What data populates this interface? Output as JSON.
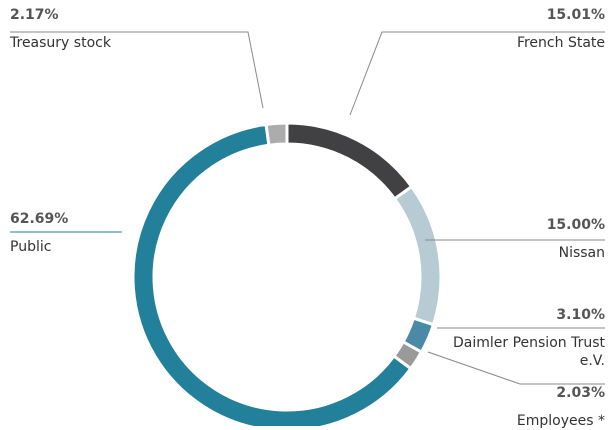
{
  "chart_data": {
    "type": "donut",
    "categories": [
      "French State",
      "Nissan",
      "Daimler Pension Trust e.V.",
      "Employees *",
      "Public",
      "Treasury stock"
    ],
    "values": [
      15.01,
      15.0,
      3.1,
      2.03,
      62.69,
      2.17
    ],
    "value_labels": [
      "15.01%",
      "15.00%",
      "3.10%",
      "2.03%",
      "62.69%",
      "2.17%"
    ],
    "colors": [
      "#414143",
      "#b7cbd4",
      "#4a8aa6",
      "#9a9a9a",
      "#22809b",
      "#acacac"
    ]
  }
}
